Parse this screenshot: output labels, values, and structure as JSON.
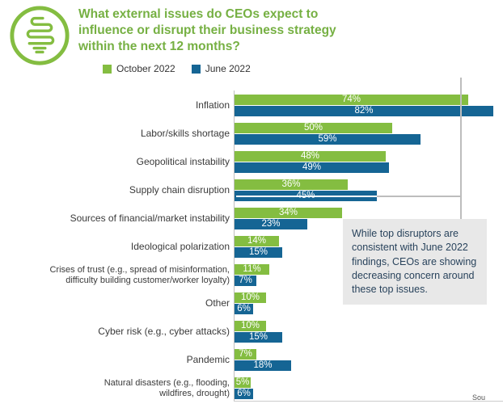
{
  "title": "What external issues do CEOs expect to\ninfluence or disrupt their business strategy\nwithin the next 12 months?",
  "colors": {
    "title_green": "#76b043",
    "october_green": "#84bd41",
    "june_blue": "#156594",
    "note_text": "#29435c",
    "note_background": "#e8e8e8",
    "connector_gray": "#bdbdbd"
  },
  "legend": [
    {
      "label": "October 2022",
      "color": "#84bd41"
    },
    {
      "label": "June 2022",
      "color": "#156594"
    }
  ],
  "annotation": "While top disruptors are consistent with June 2022 findings, CEOs are showing decreasing concern around these top issues.",
  "footer_partial": "Sou",
  "chart_data": {
    "type": "bar",
    "orientation": "horizontal",
    "value_suffix": "%",
    "xlim": [
      0,
      84
    ],
    "categories": [
      "Inflation",
      "Labor/skills shortage",
      "Geopolitical instability",
      "Supply chain disruption",
      "Sources of financial/market instability",
      "Ideological polarization",
      "Crises of trust (e.g., spread of misinformation,\ndifficulty building customer/worker loyalty)",
      "Other",
      "Cyber risk (e.g., cyber attacks)",
      "Pandemic",
      "Natural disasters (e.g., flooding,\nwildfires, drought)"
    ],
    "series": [
      {
        "name": "October 2022",
        "color": "#84bd41",
        "values": [
          74,
          50,
          48,
          36,
          34,
          14,
          11,
          10,
          10,
          7,
          5
        ]
      },
      {
        "name": "June 2022",
        "color": "#156594",
        "values": [
          82,
          59,
          49,
          45,
          23,
          15,
          7,
          6,
          15,
          18,
          6
        ]
      }
    ]
  }
}
